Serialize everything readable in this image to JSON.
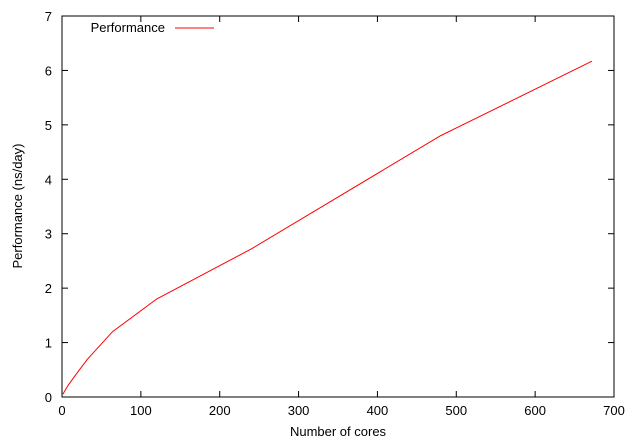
{
  "chart_data": {
    "type": "line",
    "xlabel": "Number of cores",
    "ylabel": "Performance (ns/day)",
    "xlim": [
      0,
      700
    ],
    "ylim": [
      0,
      7
    ],
    "xticks": [
      "0",
      "100",
      "200",
      "300",
      "400",
      "500",
      "600",
      "700"
    ],
    "yticks": [
      "0",
      "1",
      "2",
      "3",
      "4",
      "5",
      "6",
      "7"
    ],
    "grid": false,
    "legend_position": "top-left",
    "series": [
      {
        "name": "Performance",
        "color": "#ff0000",
        "x": [
          1,
          8,
          16,
          32,
          64,
          120,
          240,
          480,
          672
        ],
        "y": [
          0.05,
          0.22,
          0.38,
          0.69,
          1.2,
          1.8,
          2.72,
          4.8,
          6.17
        ]
      }
    ]
  }
}
